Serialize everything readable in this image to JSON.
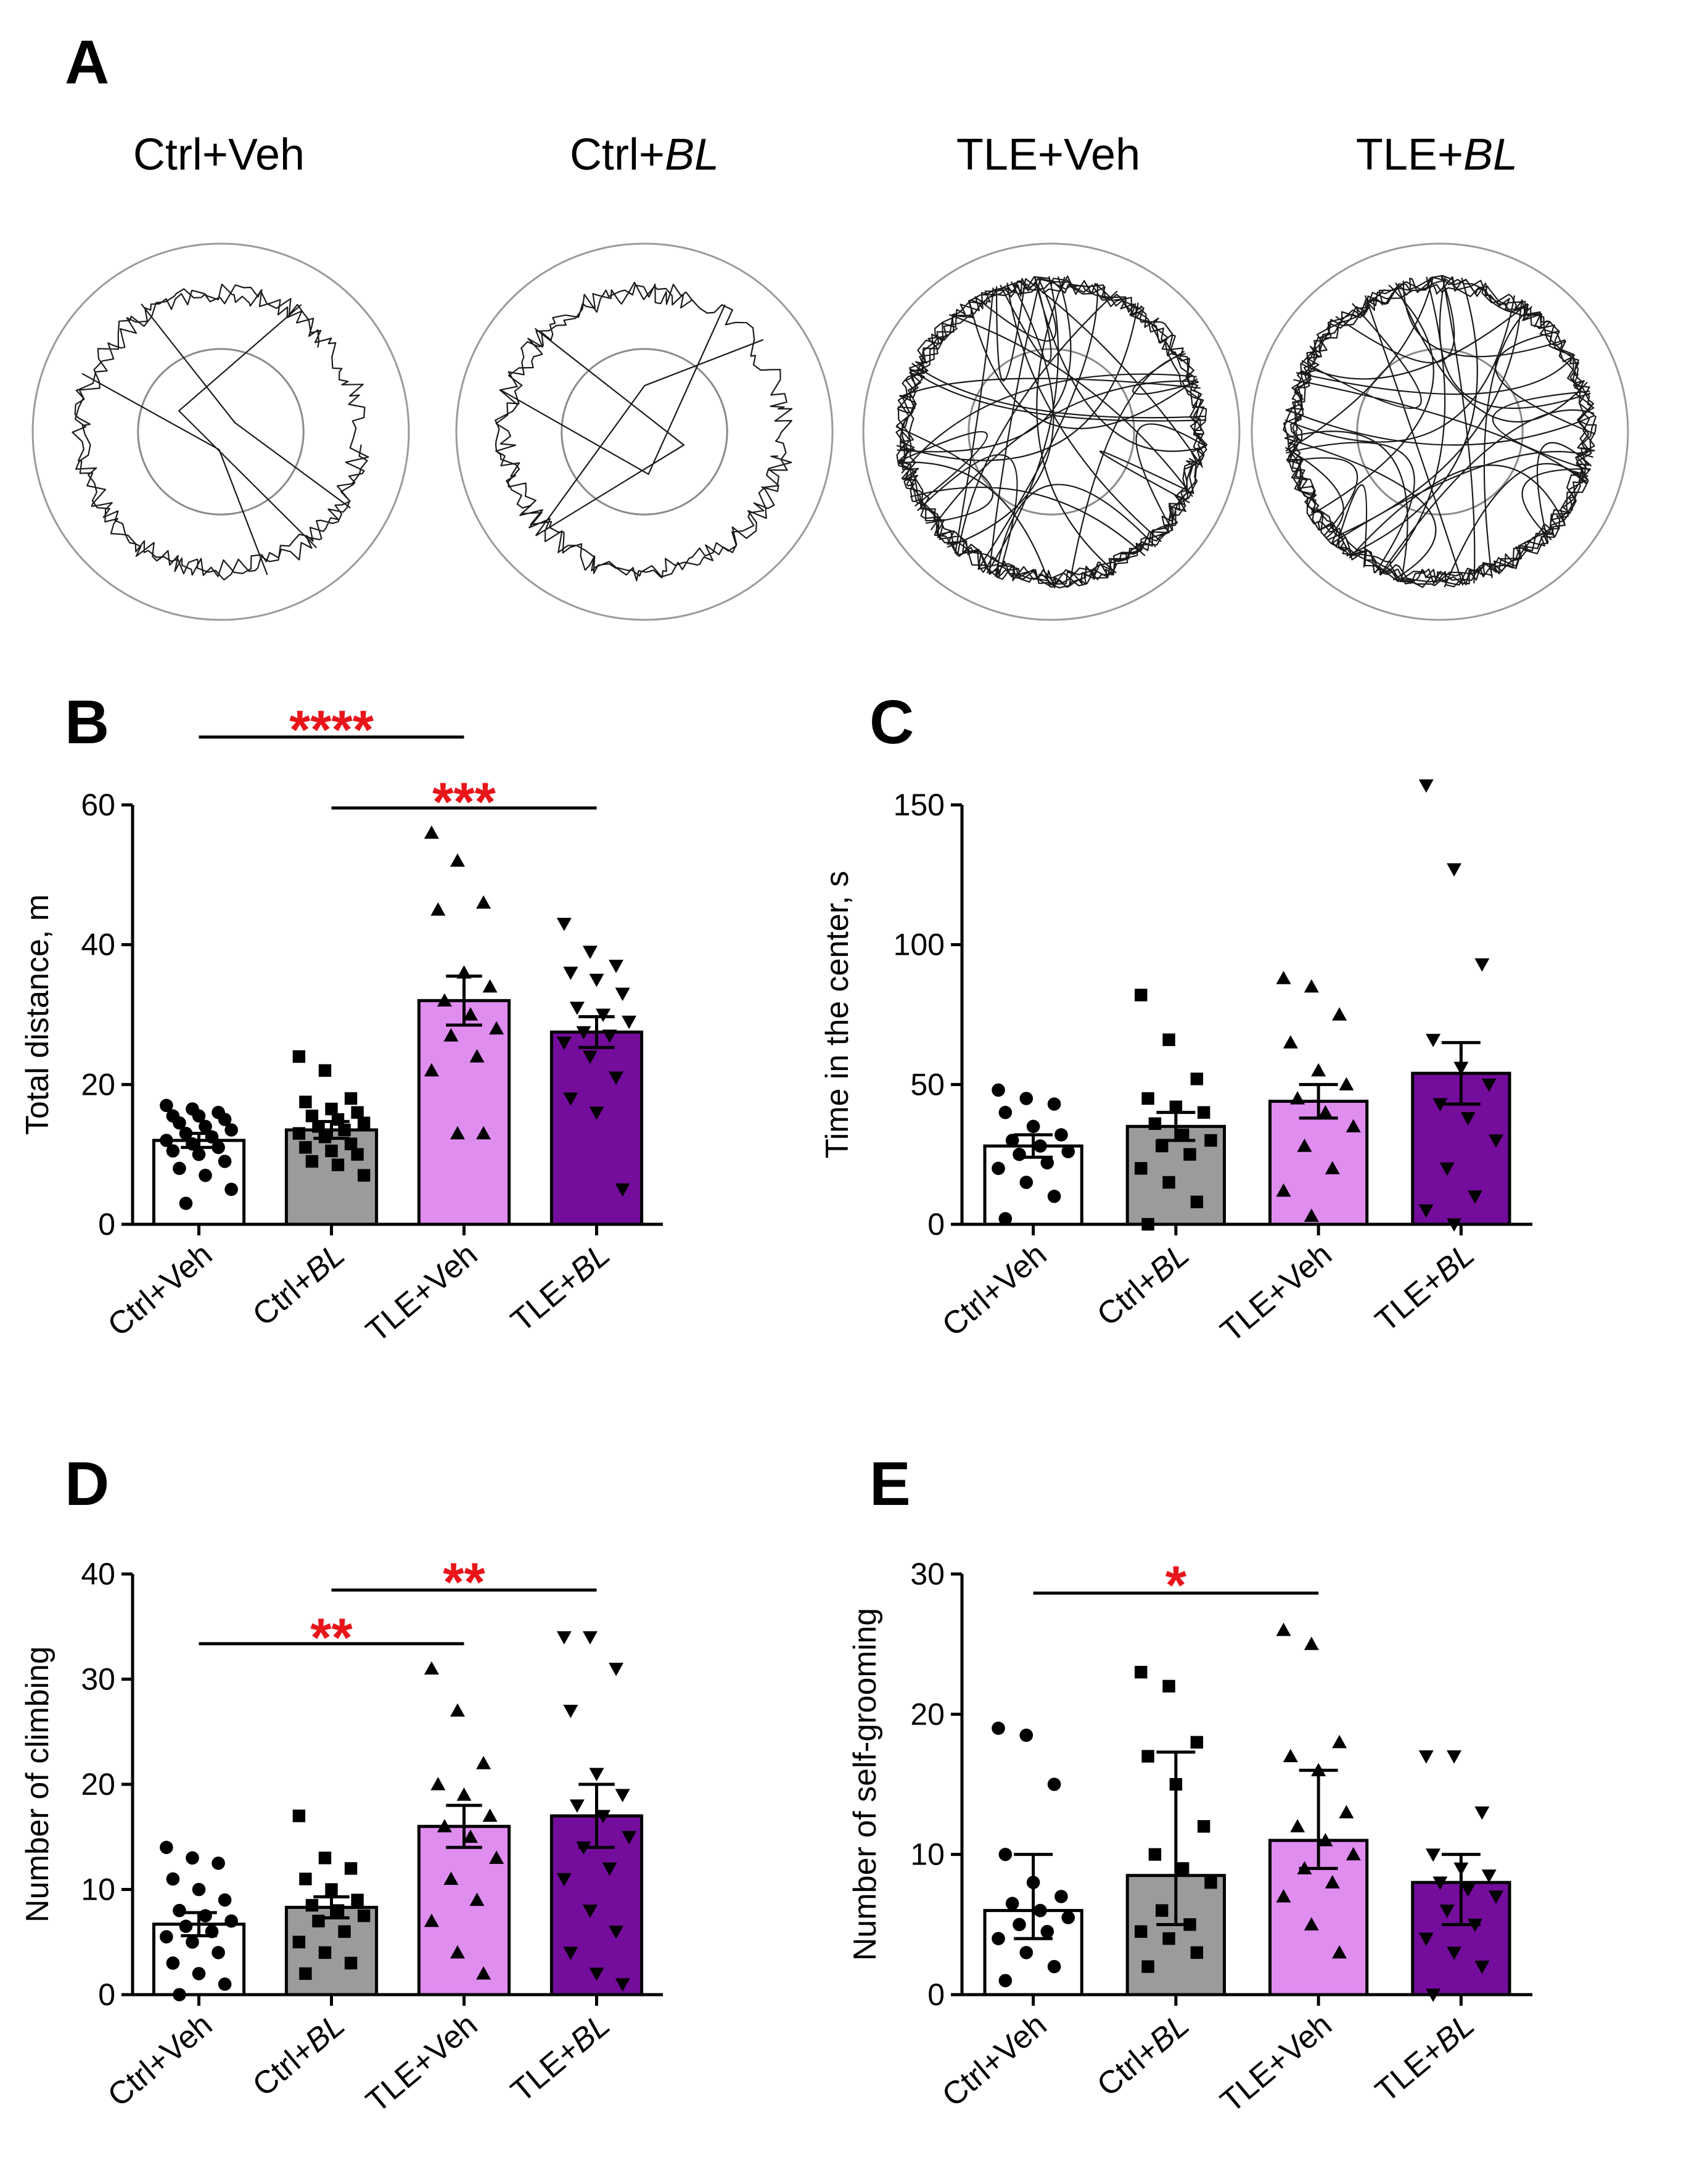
{
  "panel_a": {
    "label": "A",
    "groups": [
      {
        "name": "Ctrl+",
        "suffix": "Veh"
      },
      {
        "name": "Ctrl+",
        "suffix": "BL"
      },
      {
        "name": "TLE+",
        "suffix": "Veh"
      },
      {
        "name": "TLE+",
        "suffix": "BL"
      }
    ]
  },
  "colors": {
    "Ctrl+Veh": "#ffffff",
    "Ctrl+BL": "#9b9b9b",
    "TLE+Veh": "#e08df0",
    "TLE+BL": "#740d9c",
    "significance": "#e8151b"
  },
  "chart_data": [
    {
      "panel": "B",
      "type": "bar",
      "ylabel": "Total distance, m",
      "ylim": [
        0,
        60
      ],
      "yticks": [
        "0",
        "20",
        "40",
        "60"
      ],
      "categories": [
        {
          "name": "Ctrl+",
          "suffix": "Veh"
        },
        {
          "name": "Ctrl+",
          "suffix": "BL"
        },
        {
          "name": "TLE+",
          "suffix": "Veh"
        },
        {
          "name": "TLE+",
          "suffix": "BL"
        }
      ],
      "markers": [
        "circle",
        "square",
        "triangle-up",
        "triangle-down"
      ],
      "means": [
        12,
        13.5,
        32,
        27.5
      ],
      "errors": [
        [
          11,
          13
        ],
        [
          12.3,
          14.7
        ],
        [
          28.5,
          35.5
        ],
        [
          25.3,
          29.7
        ]
      ],
      "points": [
        [
          17,
          16.5,
          16,
          15.5,
          15.5,
          15,
          14.5,
          14,
          13.5,
          13,
          12.5,
          12,
          11.5,
          11,
          10.5,
          10,
          9,
          8,
          7,
          5,
          3
        ],
        [
          24,
          22,
          18,
          17.5,
          16.5,
          16,
          15.5,
          15,
          14.5,
          14,
          13.5,
          13,
          12.5,
          11.5,
          11,
          10.5,
          10,
          9,
          8.5,
          7
        ],
        [
          56,
          52,
          46,
          45,
          36,
          34,
          32,
          30,
          28,
          27,
          24,
          22,
          13,
          13
        ],
        [
          43,
          39,
          37,
          36,
          35,
          33,
          31,
          30,
          29,
          27.5,
          27,
          26,
          24,
          21,
          18,
          16,
          5
        ]
      ],
      "significance": [
        {
          "from": 0,
          "to": 2,
          "label": "****"
        },
        {
          "from": 1,
          "to": 3,
          "label": "***"
        }
      ]
    },
    {
      "panel": "C",
      "type": "bar",
      "ylabel": "Time in the center, s",
      "ylim": [
        0,
        150
      ],
      "yticks": [
        "0",
        "50",
        "100",
        "150"
      ],
      "categories": [
        {
          "name": "Ctrl+",
          "suffix": "Veh"
        },
        {
          "name": "Ctrl+",
          "suffix": "BL"
        },
        {
          "name": "TLE+",
          "suffix": "Veh"
        },
        {
          "name": "TLE+",
          "suffix": "BL"
        }
      ],
      "markers": [
        "circle",
        "square",
        "triangle-up",
        "triangle-down"
      ],
      "means": [
        28,
        35,
        44,
        54
      ],
      "errors": [
        [
          24,
          32
        ],
        [
          30,
          40
        ],
        [
          38,
          50
        ],
        [
          43,
          65
        ]
      ],
      "points": [
        [
          48,
          45,
          43,
          40,
          35,
          32,
          30,
          28,
          26,
          25,
          22,
          20,
          15,
          10,
          2
        ],
        [
          82,
          66,
          52,
          45,
          42,
          40,
          36,
          32,
          30,
          28,
          25,
          20,
          15,
          8,
          0
        ],
        [
          88,
          85,
          75,
          65,
          55,
          50,
          45,
          40,
          35,
          28,
          20,
          12,
          3
        ],
        [
          157,
          127,
          93,
          66,
          56,
          50,
          43,
          38,
          30,
          20,
          10,
          5,
          0
        ]
      ],
      "significance": []
    },
    {
      "panel": "D",
      "type": "bar",
      "ylabel": "Number of climbing",
      "ylim": [
        0,
        40
      ],
      "yticks": [
        "0",
        "10",
        "20",
        "30",
        "40"
      ],
      "categories": [
        {
          "name": "Ctrl+",
          "suffix": "Veh"
        },
        {
          "name": "Ctrl+",
          "suffix": "BL"
        },
        {
          "name": "TLE+",
          "suffix": "Veh"
        },
        {
          "name": "TLE+",
          "suffix": "BL"
        }
      ],
      "markers": [
        "circle",
        "square",
        "triangle-up",
        "triangle-down"
      ],
      "means": [
        6.7,
        8.3,
        16,
        17
      ],
      "errors": [
        [
          5.6,
          7.8
        ],
        [
          7.3,
          9.3
        ],
        [
          14,
          18
        ],
        [
          14,
          20
        ]
      ],
      "points": [
        [
          14,
          13,
          12.5,
          11,
          10,
          9,
          8,
          7.5,
          7,
          6.5,
          6,
          5.5,
          5,
          4,
          3,
          2,
          1,
          0
        ],
        [
          17,
          13,
          12,
          11,
          10,
          9,
          8.5,
          8,
          7.5,
          7,
          6,
          5,
          4,
          3,
          2
        ],
        [
          31,
          27,
          22,
          20,
          19,
          17,
          16,
          15,
          13,
          11,
          9,
          7,
          4,
          2
        ],
        [
          34,
          34,
          31,
          27,
          21,
          19,
          18,
          17,
          15,
          14,
          12,
          11,
          8,
          6,
          4,
          2,
          1
        ]
      ],
      "significance": [
        {
          "from": 0,
          "to": 2,
          "label": "**"
        },
        {
          "from": 1,
          "to": 3,
          "label": "**"
        }
      ]
    },
    {
      "panel": "E",
      "type": "bar",
      "ylabel": "Number of self-grooming",
      "ylim": [
        0,
        30
      ],
      "yticks": [
        "0",
        "10",
        "20",
        "30"
      ],
      "categories": [
        {
          "name": "Ctrl+",
          "suffix": "Veh"
        },
        {
          "name": "Ctrl+",
          "suffix": "BL"
        },
        {
          "name": "TLE+",
          "suffix": "Veh"
        },
        {
          "name": "TLE+",
          "suffix": "BL"
        }
      ],
      "markers": [
        "circle",
        "square",
        "triangle-up",
        "triangle-down"
      ],
      "means": [
        6,
        8.5,
        11,
        8
      ],
      "errors": [
        [
          4,
          10
        ],
        [
          5,
          17.3
        ],
        [
          9,
          16
        ],
        [
          5,
          10
        ]
      ],
      "points": [
        [
          19,
          18.5,
          15,
          10,
          8,
          7,
          6.5,
          6,
          5.5,
          5,
          4.5,
          4,
          3,
          2,
          1
        ],
        [
          23,
          22,
          18,
          17,
          15,
          12,
          10,
          9,
          8,
          6,
          5,
          4.5,
          4,
          3,
          2
        ],
        [
          26,
          25,
          18,
          17,
          16,
          13,
          12,
          11,
          10,
          9,
          8,
          7,
          5,
          3
        ],
        [
          17,
          17,
          13,
          10,
          9,
          8.5,
          8,
          7.5,
          7,
          6,
          5,
          4,
          3,
          2,
          0
        ]
      ],
      "significance": [
        {
          "from": 0,
          "to": 2,
          "label": "*"
        }
      ]
    }
  ]
}
